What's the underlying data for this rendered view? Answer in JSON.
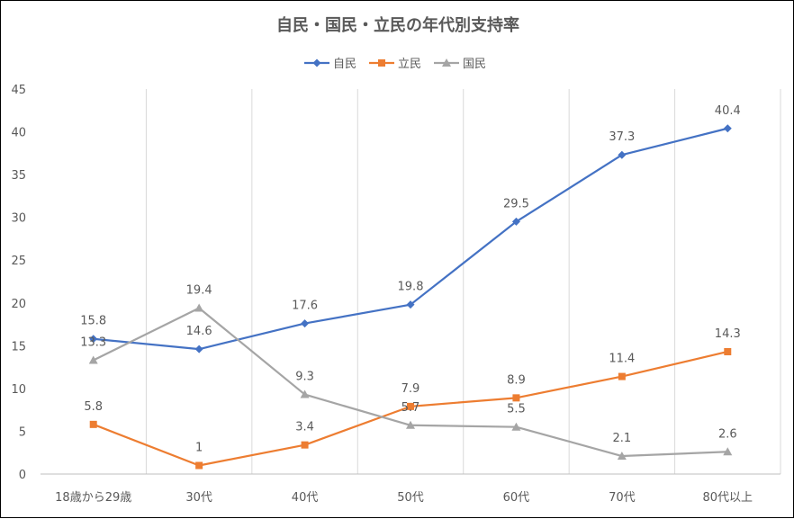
{
  "chart_data": {
    "type": "line",
    "title": "自民・国民・立民の年代別支持率",
    "xlabel": "",
    "ylabel": "",
    "categories": [
      "18歳から29歳",
      "30代",
      "40代",
      "50代",
      "60代",
      "70代",
      "80代以上"
    ],
    "ylim": [
      0,
      45
    ],
    "yticks": [
      0,
      5,
      10,
      15,
      20,
      25,
      30,
      35,
      40,
      45
    ],
    "ytick_labels": [
      "0",
      "5",
      "10",
      "15",
      "20",
      "25",
      "30",
      "35",
      "40",
      "45"
    ],
    "grid": "vertical",
    "legend_position": "top",
    "series": [
      {
        "name": "自民",
        "marker": "diamond",
        "color": "#4472C4",
        "values": [
          15.8,
          14.6,
          17.6,
          19.8,
          29.5,
          37.3,
          40.4
        ],
        "labels": [
          "15.8",
          "14.6",
          "17.6",
          "19.8",
          "29.5",
          "37.3",
          "40.4"
        ]
      },
      {
        "name": "立民",
        "marker": "square",
        "color": "#ED7D31",
        "values": [
          5.8,
          1,
          3.4,
          7.9,
          8.9,
          11.4,
          14.3
        ],
        "labels": [
          "5.8",
          "1",
          "3.4",
          "7.9",
          "8.9",
          "11.4",
          "14.3"
        ]
      },
      {
        "name": "国民",
        "marker": "triangle",
        "color": "#A5A5A5",
        "values": [
          13.3,
          19.4,
          9.3,
          5.7,
          5.5,
          2.1,
          2.6
        ],
        "labels": [
          "13.3",
          "19.4",
          "9.3",
          "5.7",
          "5.5",
          "2.1",
          "2.6"
        ]
      }
    ]
  }
}
